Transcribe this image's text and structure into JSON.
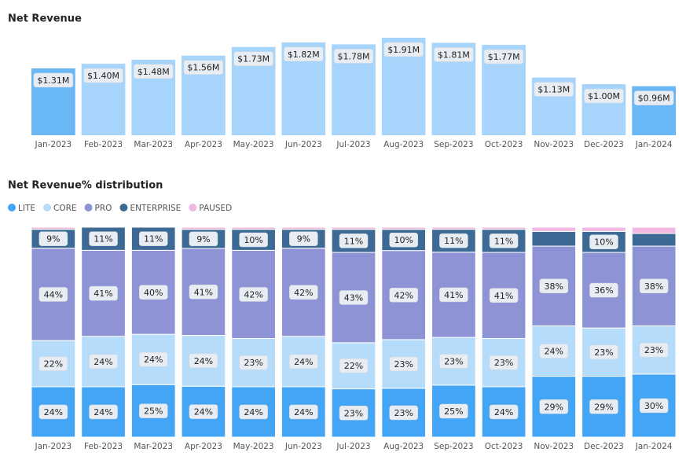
{
  "chart_data": [
    {
      "type": "bar",
      "title": "Net Revenue",
      "categories": [
        "Jan-2023",
        "Feb-2023",
        "Mar-2023",
        "Apr-2023",
        "May-2023",
        "Jun-2023",
        "Jul-2023",
        "Aug-2023",
        "Sep-2023",
        "Oct-2023",
        "Nov-2023",
        "Dec-2023",
        "Jan-2024"
      ],
      "values": [
        1.31,
        1.4,
        1.48,
        1.56,
        1.73,
        1.82,
        1.78,
        1.91,
        1.81,
        1.77,
        1.13,
        1.0,
        0.96
      ],
      "value_labels": [
        "$1.31M",
        "$1.40M",
        "$1.48M",
        "$1.56M",
        "$1.73M",
        "$1.82M",
        "$1.78M",
        "$1.91M",
        "$1.81M",
        "$1.77M",
        "$1.13M",
        "$1.00M",
        "$0.96M"
      ],
      "colors": [
        "#6ab7f6",
        "#a6d4fb",
        "#a6d4fb",
        "#a6d4fb",
        "#a6d4fb",
        "#a6d4fb",
        "#a6d4fb",
        "#a6d4fb",
        "#a6d4fb",
        "#a6d4fb",
        "#a6d4fb",
        "#a6d4fb",
        "#6ab7f6"
      ]
    },
    {
      "type": "stacked-bar",
      "title": "Net Revenue% distribution",
      "categories": [
        "Jan-2023",
        "Feb-2023",
        "Mar-2023",
        "Apr-2023",
        "May-2023",
        "Jun-2023",
        "Jul-2023",
        "Aug-2023",
        "Sep-2023",
        "Oct-2023",
        "Nov-2023",
        "Dec-2023",
        "Jan-2024"
      ],
      "series": [
        {
          "name": "LITE",
          "color": "#42a5f5",
          "values": [
            24,
            24,
            25,
            24,
            24,
            24,
            23,
            23,
            25,
            24,
            29,
            29,
            30
          ],
          "value_labels": [
            "24%",
            "24%",
            "25%",
            "24%",
            "24%",
            "24%",
            "23%",
            "23%",
            "25%",
            "24%",
            "29%",
            "29%",
            "30%"
          ]
        },
        {
          "name": "CORE",
          "color": "#b5dcfb",
          "values": [
            22,
            24,
            24,
            24,
            23,
            24,
            22,
            23,
            23,
            23,
            24,
            23,
            23
          ],
          "value_labels": [
            "22%",
            "24%",
            "24%",
            "24%",
            "23%",
            "24%",
            "22%",
            "23%",
            "23%",
            "23%",
            "24%",
            "23%",
            "23%"
          ]
        },
        {
          "name": "PRO",
          "color": "#8e93d5",
          "values": [
            44,
            41,
            40,
            41,
            42,
            42,
            43,
            42,
            41,
            41,
            38,
            36,
            38
          ],
          "value_labels": [
            "44%",
            "41%",
            "40%",
            "41%",
            "42%",
            "42%",
            "43%",
            "42%",
            "41%",
            "41%",
            "38%",
            "36%",
            "38%"
          ]
        },
        {
          "name": "ENTERPRISE",
          "color": "#3d6a95",
          "values": [
            9,
            11,
            11,
            9,
            10,
            9,
            11,
            10,
            11,
            11,
            7,
            10,
            6
          ],
          "value_labels": [
            "9%",
            "11%",
            "11%",
            "9%",
            "10%",
            "9%",
            "11%",
            "10%",
            "11%",
            "11%",
            null,
            "10%",
            null
          ]
        },
        {
          "name": "PAUSED",
          "color": "#f1b9e1",
          "values": [
            1,
            0,
            0,
            1,
            1,
            1,
            1,
            1,
            1,
            1,
            2,
            2,
            3
          ]
        }
      ]
    }
  ]
}
